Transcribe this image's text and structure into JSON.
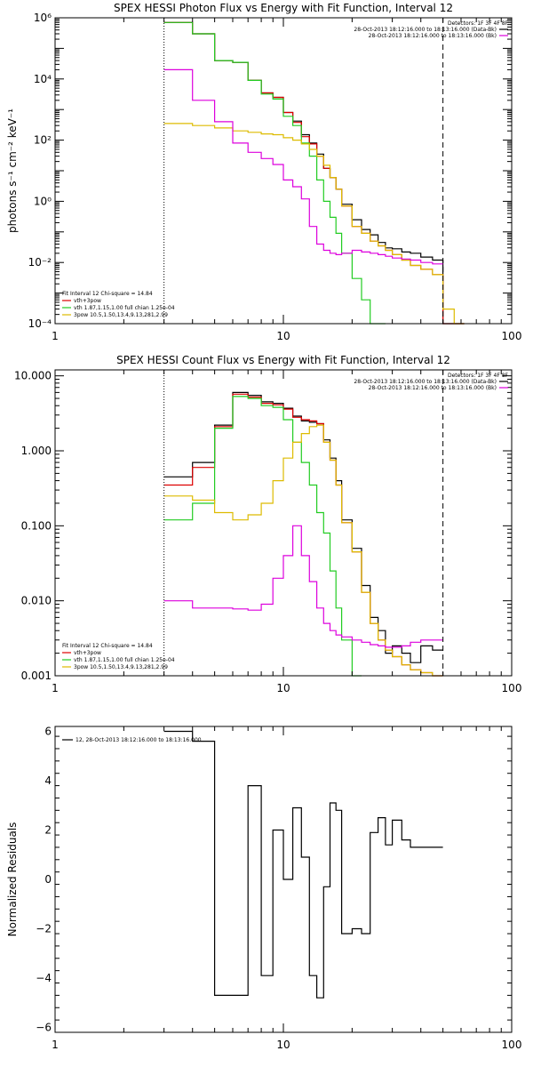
{
  "chart_data": [
    {
      "id": "photon",
      "type": "line",
      "title": "SPEX HESSI Photon Flux vs Energy with Fit Function, Interval 12",
      "ylabel": "photons s⁻¹ cm⁻² keV⁻¹",
      "xlabel": "",
      "xscale": "log",
      "yscale": "log",
      "xlim": [
        1,
        100
      ],
      "ylim": [
        0.0001,
        1000000
      ],
      "x_ticks": [
        {
          "v": 1,
          "label": "1"
        },
        {
          "v": 10,
          "label": "10"
        },
        {
          "v": 100,
          "label": "100"
        }
      ],
      "y_ticks": [
        {
          "v": 0.0001,
          "label": "10⁻⁴"
        },
        {
          "v": 0.01,
          "label": "10⁻²"
        },
        {
          "v": 1,
          "label": "10⁰"
        },
        {
          "v": 100,
          "label": "10²"
        },
        {
          "v": 10000,
          "label": "10⁴"
        },
        {
          "v": 1000000,
          "label": "10⁶"
        }
      ],
      "vlines": [
        {
          "x": 3,
          "style": "dotted"
        },
        {
          "x": 50,
          "style": "dashed"
        }
      ],
      "edges": [
        3,
        4,
        5,
        6,
        7,
        8,
        9,
        10,
        11,
        12,
        13,
        14,
        15,
        16,
        17,
        18,
        20,
        22,
        24,
        26,
        28,
        30,
        33,
        36,
        40,
        45,
        50,
        56,
        62
      ],
      "series": [
        {
          "name": "",
          "color": "#000000",
          "values": [
            700000,
            300000,
            40000,
            35000,
            9000,
            3500,
            2500,
            800,
            420,
            150,
            80,
            35,
            12,
            6,
            2.5,
            0.8,
            0.25,
            0.12,
            0.08,
            0.045,
            0.03,
            0.028,
            0.022,
            0.02,
            0.015,
            0.012,
            0.0001,
            0.0001
          ]
        },
        {
          "name": "vth+3pow",
          "color": "#dd0000",
          "values": [
            700000,
            300000,
            40000,
            35000,
            9000,
            3500,
            2500,
            800,
            380,
            130,
            75,
            30,
            12,
            6,
            2.5,
            0.7,
            0.15,
            0.09,
            0.05,
            0.035,
            0.025,
            0.018,
            0.012,
            0.008,
            0.006,
            0.004,
            0.0001,
            0.0001
          ]
        },
        {
          "name": "vth 1.87,1.15,1.00  full chian 1.25e-04",
          "color": "#22cc22",
          "values": [
            700000,
            300000,
            40000,
            35000,
            9000,
            3200,
            2200,
            600,
            300,
            80,
            30,
            5,
            1.0,
            0.3,
            0.09,
            0.02,
            0.003,
            0.0006,
            0.0001,
            0.0001
          ]
        },
        {
          "name": "3pow 10.5,1.50,13.4,9.13,281,2.99",
          "color": "#ddbb00",
          "values": [
            350,
            300,
            250,
            200,
            180,
            160,
            150,
            120,
            100,
            75,
            50,
            30,
            15,
            6,
            2.5,
            0.7,
            0.15,
            0.09,
            0.05,
            0.035,
            0.025,
            0.018,
            0.012,
            0.008,
            0.006,
            0.004,
            0.0003,
            0.0001
          ]
        },
        {
          "name": "",
          "color": "#dd00dd",
          "values": [
            20000,
            2000,
            400,
            80,
            40,
            25,
            16,
            5,
            3,
            1.2,
            0.15,
            0.04,
            0.025,
            0.02,
            0.018,
            0.02,
            0.025,
            0.022,
            0.02,
            0.018,
            0.016,
            0.014,
            0.013,
            0.012,
            0.01,
            0.009
          ]
        }
      ],
      "legend_top": {
        "header": "Detectors: 1F 3F 4F 8F",
        "items": [
          {
            "text": "28-Oct-2013 18:12:16.000 to 18:13:16.000 (Data-Bk)",
            "color": "#000000"
          },
          {
            "text": "28-Oct-2013 18:12:16.000 to 18:13:16.000 (Bk)",
            "color": "#dd00dd"
          }
        ]
      },
      "legend_bottom": {
        "header": "Fit Interval 12   Chi-square = 14.84",
        "items": [
          {
            "text": "vth+3pow",
            "color": "#dd0000"
          },
          {
            "text": "vth 1.87,1.15,1.00  full chian 1.25e-04",
            "color": "#22cc22"
          },
          {
            "text": "3pow 10.5,1.50,13.4,9.13,281,2.99",
            "color": "#ddbb00"
          }
        ]
      }
    },
    {
      "id": "count",
      "type": "line",
      "title": "SPEX HESSI Count Flux vs Energy with Fit Function, Interval 12",
      "ylabel": "",
      "xlabel": "",
      "xscale": "log",
      "yscale": "log",
      "xlim": [
        1,
        100
      ],
      "ylim": [
        0.001,
        12
      ],
      "x_ticks": [
        {
          "v": 1,
          "label": "1"
        },
        {
          "v": 10,
          "label": "10"
        },
        {
          "v": 100,
          "label": "100"
        }
      ],
      "y_ticks": [
        {
          "v": 0.001,
          "label": "0.001"
        },
        {
          "v": 0.01,
          "label": "0.010"
        },
        {
          "v": 0.1,
          "label": "0.100"
        },
        {
          "v": 1,
          "label": "1.000"
        },
        {
          "v": 10,
          "label": "10.000"
        }
      ],
      "vlines": [
        {
          "x": 3,
          "style": "dotted"
        },
        {
          "x": 50,
          "style": "dashed"
        }
      ],
      "edges": [
        3,
        4,
        5,
        6,
        7,
        8,
        9,
        10,
        11,
        12,
        13,
        14,
        15,
        16,
        17,
        18,
        20,
        22,
        24,
        26,
        28,
        30,
        33,
        36,
        40,
        45,
        50
      ],
      "series": [
        {
          "name": "",
          "color": "#000000",
          "values": [
            0.45,
            0.7,
            2.2,
            6.0,
            5.5,
            4.5,
            4.3,
            3.7,
            2.9,
            2.5,
            2.4,
            2.3,
            1.4,
            0.8,
            0.4,
            0.12,
            0.05,
            0.016,
            0.006,
            0.004,
            0.002,
            0.0025,
            0.002,
            0.0015,
            0.0025,
            0.0022
          ]
        },
        {
          "name": "vth+3pow",
          "color": "#dd0000",
          "values": [
            0.35,
            0.6,
            2.1,
            5.7,
            5.2,
            4.3,
            4.1,
            3.6,
            2.8,
            2.6,
            2.5,
            2.3,
            1.3,
            0.75,
            0.35,
            0.11,
            0.045,
            0.013,
            0.005,
            0.003,
            0.0022,
            0.0018,
            0.0014,
            0.0012,
            0.0011,
            0.001
          ]
        },
        {
          "name": "vth 1.87,1.15,1.00  full chian 1.25e-04",
          "color": "#22cc22",
          "values": [
            0.12,
            0.2,
            2.0,
            5.3,
            5.0,
            4.0,
            3.8,
            2.6,
            1.3,
            0.7,
            0.35,
            0.15,
            0.08,
            0.025,
            0.008,
            0.003,
            0.001
          ]
        },
        {
          "name": "3pow 10.5,1.50,13.4,9.13,281,2.99",
          "color": "#ddbb00",
          "values": [
            0.25,
            0.22,
            0.15,
            0.12,
            0.14,
            0.2,
            0.4,
            0.8,
            1.3,
            1.7,
            2.1,
            2.2,
            1.3,
            0.75,
            0.35,
            0.11,
            0.045,
            0.013,
            0.005,
            0.003,
            0.0022,
            0.0018,
            0.0014,
            0.0012,
            0.0011,
            0.0008
          ]
        },
        {
          "name": "",
          "color": "#dd00dd",
          "values": [
            0.01,
            0.008,
            0.008,
            0.0078,
            0.0075,
            0.009,
            0.02,
            0.04,
            0.1,
            0.04,
            0.018,
            0.008,
            0.005,
            0.004,
            0.0035,
            0.0033,
            0.003,
            0.0028,
            0.0026,
            0.0025,
            0.0024,
            0.0024,
            0.0025,
            0.0028,
            0.003,
            0.003
          ]
        }
      ],
      "legend_top": {
        "header": "Detectors: 1F 3F 4F 8F",
        "items": [
          {
            "text": "28-Oct-2013 18:12:16.000 to 18:13:16.000 (Data-Bk)",
            "color": "#000000"
          },
          {
            "text": "28-Oct-2013 18:12:16.000 to 18:13:16.000 (Bk)",
            "color": "#dd00dd"
          }
        ]
      },
      "legend_bottom": {
        "header": "Fit Interval 12   Chi-square = 14.84",
        "items": [
          {
            "text": "vth+3pow",
            "color": "#dd0000"
          },
          {
            "text": "vth 1.87,1.15,1.00  full chian 1.25e-04",
            "color": "#22cc22"
          },
          {
            "text": "3pow 10.5,1.50,13.4,9.13,281,2.99",
            "color": "#ddbb00"
          }
        ]
      }
    },
    {
      "id": "resid",
      "type": "line",
      "title": "",
      "ylabel": "Normalized Residuals",
      "xlabel": "",
      "xscale": "log",
      "yscale": "linear",
      "xlim": [
        1,
        100
      ],
      "ylim": [
        -6.2,
        6.2
      ],
      "x_ticks": [
        {
          "v": 1,
          "label": "1"
        },
        {
          "v": 10,
          "label": "10"
        },
        {
          "v": 100,
          "label": "100"
        }
      ],
      "y_ticks": [
        {
          "v": -6,
          "label": "−6"
        },
        {
          "v": -4,
          "label": "−4"
        },
        {
          "v": -2,
          "label": "−2"
        },
        {
          "v": 0,
          "label": "0"
        },
        {
          "v": 2,
          "label": "2"
        },
        {
          "v": 4,
          "label": "4"
        },
        {
          "v": 6,
          "label": "6"
        }
      ],
      "vlines": [],
      "edges": [
        3,
        4,
        5,
        6,
        7,
        8,
        9,
        10,
        11,
        12,
        13,
        14,
        15,
        16,
        17,
        18,
        20,
        22,
        24,
        26,
        28,
        30,
        33,
        36,
        40,
        45,
        50
      ],
      "series": [
        {
          "name": "12, 28-Oct-2013 18:12:16.000 to 18:13:16.000",
          "color": "#000000",
          "values": [
            6.0,
            5.6,
            -4.7,
            -4.7,
            3.8,
            -3.9,
            2.0,
            0.0,
            2.9,
            0.9,
            -3.9,
            -4.8,
            -0.3,
            3.1,
            2.8,
            -2.2,
            -2.0,
            -2.2,
            1.9,
            2.5,
            1.4,
            2.4,
            1.6,
            1.3,
            1.3,
            1.3
          ]
        }
      ],
      "legend_top": {
        "header": "",
        "items": [
          {
            "text": "12, 28-Oct-2013 18:12:16.000 to 18:13:16.000",
            "color": "#000000"
          }
        ]
      },
      "legend_bottom": {
        "header": "",
        "items": []
      }
    }
  ]
}
